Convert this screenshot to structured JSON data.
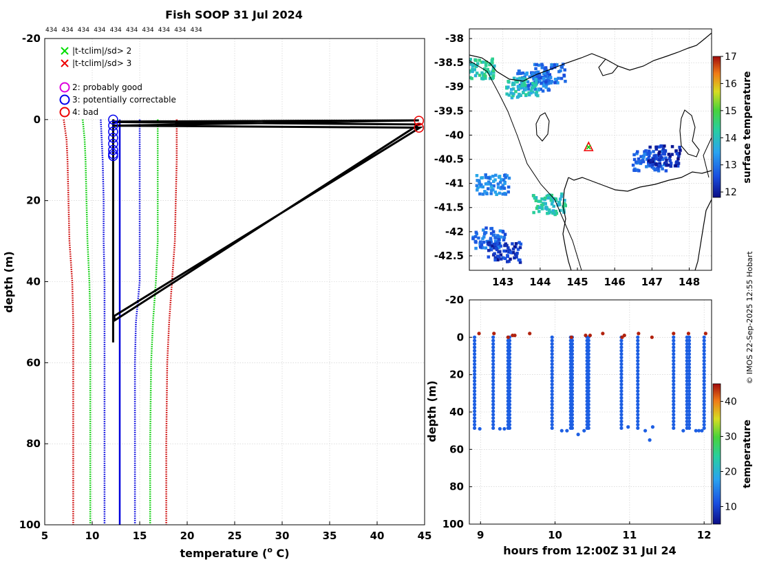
{
  "title": "Fish SOOP 31 Jul 2024",
  "profile_count_labels": [
    "434",
    "434",
    "434",
    "434",
    "434",
    "434",
    "434",
    "434",
    "434",
    "434"
  ],
  "copyright": "© IMOS 22-Sep-2025 12:55 Hobart",
  "legend": {
    "flag_x": [
      {
        "label": "|t-tclim|/sd> 2",
        "color": "#00dd00"
      },
      {
        "label": "|t-tclim|/sd> 3",
        "color": "#ee0000"
      }
    ],
    "flag_circles": [
      {
        "label": "2: probably good",
        "color": "#dd00dd"
      },
      {
        "label": "3: potentially correctable",
        "color": "#0000ee"
      },
      {
        "label": "4: bad",
        "color": "#ee0000"
      }
    ]
  },
  "chart_data": [
    {
      "type": "line",
      "name": "temperature-profile",
      "title": "Fish SOOP 31 Jul 2024",
      "xlabel": "temperature (o C)",
      "ylabel": "depth (m)",
      "xlim": [
        5,
        45
      ],
      "ylim": [
        -20,
        100
      ],
      "y_reversed": true,
      "xticks": [
        5,
        10,
        15,
        20,
        25,
        30,
        35,
        40,
        45
      ],
      "yticks": [
        -20,
        0,
        20,
        40,
        60,
        80,
        100
      ],
      "grid": true,
      "series": [
        {
          "name": "clim -3sd",
          "color": "#cc0000",
          "style": "dotted",
          "depth": [
            0,
            5,
            10,
            20,
            30,
            40,
            50,
            60,
            80,
            100
          ],
          "temp": [
            7.0,
            7.3,
            7.4,
            7.5,
            7.6,
            7.9,
            8.0,
            8.0,
            8.0,
            8.0
          ]
        },
        {
          "name": "clim -2sd",
          "color": "#00cc00",
          "style": "dotted",
          "depth": [
            0,
            5,
            10,
            20,
            30,
            40,
            50,
            60,
            80,
            100
          ],
          "temp": [
            9.0,
            9.2,
            9.3,
            9.4,
            9.5,
            9.7,
            9.8,
            9.8,
            9.8,
            9.8
          ]
        },
        {
          "name": "clim -1sd",
          "color": "#0000dd",
          "style": "dotted",
          "depth": [
            0,
            5,
            10,
            20,
            30,
            40,
            50,
            60,
            80,
            100
          ],
          "temp": [
            10.9,
            11.0,
            11.1,
            11.2,
            11.2,
            11.3,
            11.3,
            11.3,
            11.3,
            11.3
          ]
        },
        {
          "name": "clim mean",
          "color": "#0000dd",
          "style": "solid",
          "depth": [
            0,
            10,
            20,
            40,
            60,
            80,
            100
          ],
          "temp": [
            12.9,
            12.9,
            12.9,
            12.9,
            12.9,
            12.9,
            12.9
          ]
        },
        {
          "name": "clim +1sd",
          "color": "#0000dd",
          "style": "dotted",
          "depth": [
            0,
            10,
            20,
            40,
            50,
            60,
            80,
            100
          ],
          "temp": [
            15.0,
            15.0,
            15.0,
            15.0,
            14.6,
            14.5,
            14.5,
            14.5
          ]
        },
        {
          "name": "clim +2sd",
          "color": "#00cc00",
          "style": "dotted",
          "depth": [
            0,
            10,
            20,
            30,
            40,
            50,
            60,
            80,
            100
          ],
          "temp": [
            16.9,
            16.9,
            16.9,
            16.9,
            16.7,
            16.4,
            16.2,
            16.1,
            16.1
          ]
        },
        {
          "name": "clim +3sd",
          "color": "#cc0000",
          "style": "dotted",
          "depth": [
            0,
            10,
            20,
            30,
            40,
            50,
            60,
            80,
            100
          ],
          "temp": [
            18.9,
            18.9,
            18.8,
            18.7,
            18.4,
            18.1,
            17.9,
            17.8,
            17.8
          ]
        },
        {
          "name": "profile",
          "color": "#000000",
          "style": "solid",
          "depth": [
            55,
            0,
            0.5,
            0.2,
            1.5,
            2.0,
            48.5,
            49.5,
            1.2,
            0.6
          ],
          "temp": [
            12.2,
            12.2,
            12.3,
            44.4,
            12.3,
            44.5,
            12.3,
            12.4,
            44.4,
            12.2
          ]
        }
      ],
      "flag3_points": {
        "temp": [
          12.2,
          12.2,
          12.2,
          12.2,
          12.2,
          12.2,
          12.2,
          12.2
        ],
        "depth": [
          0,
          1.5,
          3,
          4.5,
          6,
          7.5,
          8.5,
          9
        ]
      },
      "flag4_points": {
        "temp": [
          44.4,
          44.4
        ],
        "depth": [
          0.3,
          2.0
        ]
      }
    },
    {
      "type": "heatmap",
      "name": "sst-map",
      "xlim": [
        142.1,
        148.6
      ],
      "ylim": [
        -42.8,
        -37.8
      ],
      "xticks": [
        143,
        144,
        145,
        146,
        147,
        148
      ],
      "yticks": [
        -38,
        -38.5,
        -39,
        -39.5,
        -40,
        -40.5,
        -41,
        -41.5,
        -42,
        -42.5
      ],
      "colorbar_label": "surface temperature",
      "colorbar_range": [
        11.8,
        17
      ],
      "colorbar_ticks": [
        12,
        13,
        14,
        15,
        16,
        17
      ],
      "marker": {
        "lon": 145.3,
        "lat": -40.25
      },
      "patches": [
        {
          "lon": 143.8,
          "lat": -38.85,
          "temp": 13.0
        },
        {
          "lon": 144.2,
          "lat": -38.7,
          "temp": 12.9
        },
        {
          "lon": 142.3,
          "lat": -38.6,
          "temp": 14.2
        },
        {
          "lon": 143.5,
          "lat": -39.0,
          "temp": 14.0
        },
        {
          "lon": 146.9,
          "lat": -40.5,
          "temp": 12.8
        },
        {
          "lon": 147.3,
          "lat": -40.4,
          "temp": 12.2
        },
        {
          "lon": 142.7,
          "lat": -41.0,
          "temp": 13.2
        },
        {
          "lon": 144.2,
          "lat": -41.4,
          "temp": 14.1
        },
        {
          "lon": 142.6,
          "lat": -42.1,
          "temp": 12.9
        },
        {
          "lon": 143.0,
          "lat": -42.4,
          "temp": 12.3
        }
      ]
    },
    {
      "type": "scatter",
      "name": "depth-time",
      "xlabel": "hours from 12:00Z 31 Jul 24",
      "ylabel": "depth (m)",
      "xlim": [
        8.85,
        12.1
      ],
      "ylim": [
        -20,
        100
      ],
      "y_reversed": true,
      "xticks": [
        9,
        10,
        11,
        12
      ],
      "yticks": [
        -20,
        0,
        20,
        40,
        60,
        80,
        100
      ],
      "colorbar_label": "temperature",
      "colorbar_range": [
        5,
        45
      ],
      "colorbar_ticks": [
        10,
        20,
        30,
        40
      ],
      "casts": [
        8.92,
        9.17,
        9.37,
        9.39,
        9.96,
        10.21,
        10.23,
        10.43,
        10.45,
        10.89,
        11.11,
        11.59,
        11.77,
        11.8,
        12.0
      ],
      "casts_max_depth": 49,
      "bottom_points": {
        "hours": [
          8.99,
          9.26,
          9.32,
          10.09,
          10.16,
          10.31,
          10.39,
          10.98,
          11.21,
          11.27,
          11.31,
          11.72,
          11.89,
          11.93,
          11.97
        ],
        "depth": [
          49,
          49,
          49,
          50,
          50,
          52,
          50,
          48,
          50,
          55,
          48,
          50,
          50,
          50,
          50
        ]
      },
      "surface_points": {
        "hours": [
          8.98,
          9.18,
          9.37,
          9.43,
          9.46,
          9.66,
          10.22,
          10.41,
          10.47,
          10.64,
          10.9,
          10.93,
          11.12,
          11.3,
          11.59,
          11.79,
          12.02
        ],
        "depth": [
          -2,
          -2,
          0,
          -1,
          -1,
          -2,
          0,
          -1,
          -1,
          -2,
          0,
          -1,
          -2,
          0,
          -2,
          -2,
          -2
        ],
        "temp": 44
      }
    }
  ]
}
